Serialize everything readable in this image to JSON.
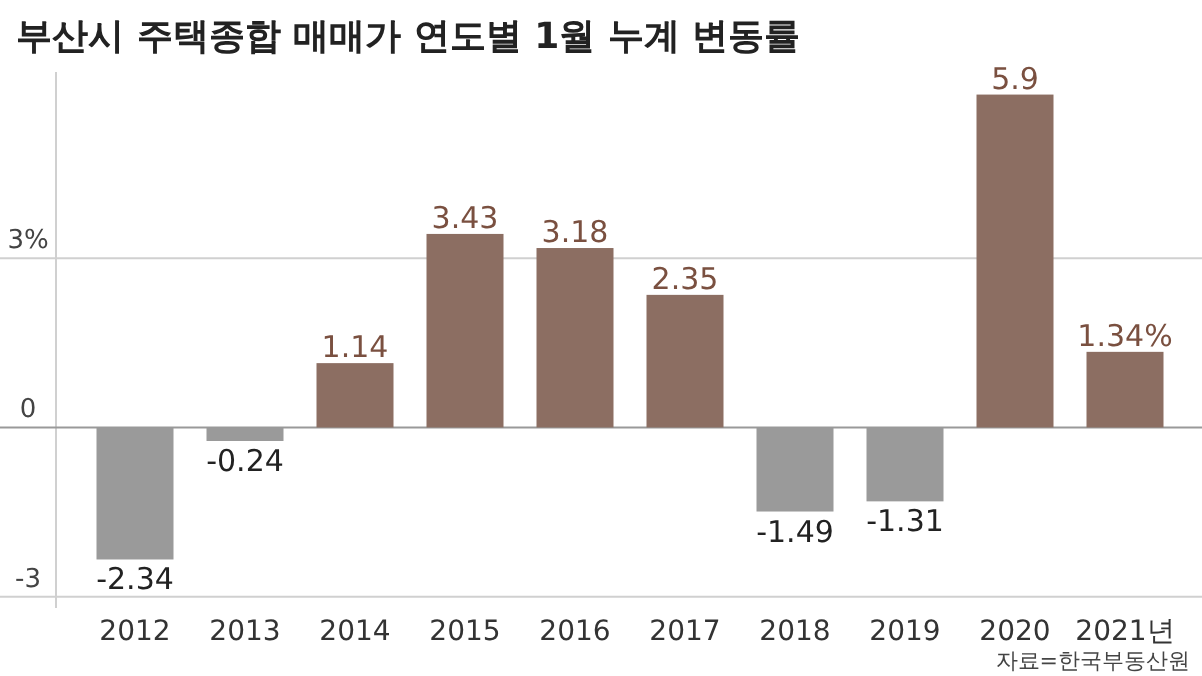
{
  "chart_data": {
    "type": "bar",
    "title": "부산시 주택종합 매매가 연도별 1월 누계 변동률",
    "categories": [
      "2012",
      "2013",
      "2014",
      "2015",
      "2016",
      "2017",
      "2018",
      "2019",
      "2020",
      "2021년"
    ],
    "values": [
      -2.34,
      -0.24,
      1.14,
      3.43,
      3.18,
      2.35,
      -1.49,
      -1.31,
      5.9,
      1.34
    ],
    "value_labels": [
      "-2.34",
      "-0.24",
      "1.14",
      "3.43",
      "3.18",
      "2.35",
      "-1.49",
      "-1.31",
      "5.9",
      "1.34%"
    ],
    "colors": [
      "#9a9a9a",
      "#9a9a9a",
      "#8c6e62",
      "#8c6e62",
      "#8c6e62",
      "#8c6e62",
      "#9a9a9a",
      "#9a9a9a",
      "#8c6e62",
      "#8c6e62"
    ],
    "ylim": [
      -3.2,
      6.3
    ],
    "yticks": [
      {
        "value": 3,
        "label": "3%"
      },
      0,
      -3
    ],
    "grid": "y",
    "annotations": [
      "자료=한국부동산원"
    ]
  }
}
